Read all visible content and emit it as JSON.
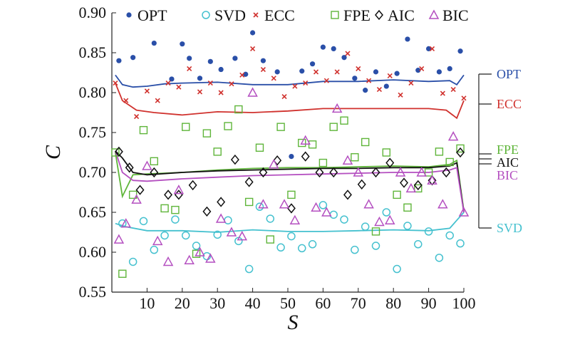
{
  "chart_data": {
    "type": "scatter",
    "title": "",
    "xlabel": "S",
    "ylabel": "C",
    "xlim": [
      0,
      100
    ],
    "ylim": [
      0.55,
      0.9
    ],
    "xticks": [
      10,
      20,
      30,
      40,
      50,
      60,
      70,
      80,
      90,
      100
    ],
    "yticks": [
      0.55,
      0.6,
      0.65,
      0.7,
      0.75,
      0.8,
      0.85,
      0.9
    ],
    "ytick_labels": [
      "0.55",
      "0.60",
      "0.65",
      "0.70",
      "0.75",
      "0.80",
      "0.85",
      "0.90"
    ],
    "grid": false,
    "legend": "top",
    "series": [
      {
        "name": "OPT",
        "marker": "dot",
        "color": "#2a4fa8",
        "x": [
          2,
          6,
          12,
          17,
          20,
          22,
          25,
          28,
          31,
          35,
          38,
          40,
          43,
          47,
          51,
          54,
          57,
          60,
          63,
          66,
          69,
          72,
          75,
          78,
          81,
          84,
          87,
          90,
          93,
          96,
          99
        ],
        "y": [
          0.84,
          0.844,
          0.862,
          0.817,
          0.861,
          0.843,
          0.818,
          0.839,
          0.829,
          0.843,
          0.823,
          0.875,
          0.84,
          0.826,
          0.72,
          0.827,
          0.836,
          0.857,
          0.855,
          0.844,
          0.818,
          0.803,
          0.826,
          0.808,
          0.824,
          0.867,
          0.828,
          0.855,
          0.826,
          0.83,
          0.852
        ],
        "trend": [
          [
            1,
            0.822
          ],
          [
            3,
            0.81
          ],
          [
            6,
            0.807
          ],
          [
            10,
            0.808
          ],
          [
            15,
            0.811
          ],
          [
            20,
            0.812
          ],
          [
            30,
            0.813
          ],
          [
            40,
            0.81
          ],
          [
            50,
            0.81
          ],
          [
            60,
            0.814
          ],
          [
            70,
            0.814
          ],
          [
            80,
            0.816
          ],
          [
            90,
            0.814
          ],
          [
            96,
            0.815
          ],
          [
            98,
            0.81
          ],
          [
            100,
            0.822
          ]
        ],
        "right_label": "OPT"
      },
      {
        "name": "SVD",
        "marker": "circle",
        "color": "#45c1cf",
        "x": [
          3,
          6,
          9,
          12,
          15,
          18,
          21,
          24,
          27,
          30,
          33,
          36,
          39,
          42,
          45,
          48,
          51,
          54,
          57,
          60,
          63,
          66,
          69,
          72,
          75,
          78,
          81,
          84,
          87,
          90,
          93,
          96,
          99
        ],
        "y": [
          0.636,
          0.588,
          0.639,
          0.603,
          0.621,
          0.641,
          0.621,
          0.608,
          0.595,
          0.622,
          0.64,
          0.614,
          0.579,
          0.657,
          0.642,
          0.606,
          0.62,
          0.605,
          0.61,
          0.659,
          0.647,
          0.641,
          0.603,
          0.632,
          0.608,
          0.65,
          0.579,
          0.633,
          0.61,
          0.626,
          0.593,
          0.621,
          0.611
        ],
        "trend": [
          [
            1,
            0.636
          ],
          [
            4,
            0.632
          ],
          [
            10,
            0.627
          ],
          [
            20,
            0.627
          ],
          [
            30,
            0.625
          ],
          [
            40,
            0.628
          ],
          [
            50,
            0.626
          ],
          [
            60,
            0.626
          ],
          [
            70,
            0.627
          ],
          [
            80,
            0.628
          ],
          [
            90,
            0.627
          ],
          [
            96,
            0.63
          ],
          [
            98,
            0.64
          ],
          [
            100,
            0.65
          ]
        ],
        "right_label": "SVD"
      },
      {
        "name": "ECC",
        "marker": "cross",
        "color": "#d0312d",
        "x": [
          1,
          4,
          7,
          10,
          13,
          16,
          19,
          22,
          25,
          28,
          31,
          34,
          37,
          40,
          43,
          46,
          49,
          52,
          55,
          58,
          61,
          64,
          67,
          70,
          73,
          76,
          79,
          82,
          85,
          88,
          91,
          94,
          97,
          100
        ],
        "y": [
          0.812,
          0.79,
          0.77,
          0.802,
          0.79,
          0.812,
          0.807,
          0.83,
          0.801,
          0.812,
          0.8,
          0.811,
          0.822,
          0.855,
          0.829,
          0.818,
          0.795,
          0.808,
          0.812,
          0.826,
          0.815,
          0.826,
          0.849,
          0.83,
          0.815,
          0.804,
          0.821,
          0.797,
          0.812,
          0.83,
          0.855,
          0.799,
          0.804,
          0.793
        ],
        "trend": [
          [
            1,
            0.812
          ],
          [
            3,
            0.79
          ],
          [
            7,
            0.778
          ],
          [
            12,
            0.775
          ],
          [
            20,
            0.772
          ],
          [
            30,
            0.776
          ],
          [
            40,
            0.775
          ],
          [
            50,
            0.777
          ],
          [
            60,
            0.78
          ],
          [
            70,
            0.78
          ],
          [
            80,
            0.78
          ],
          [
            90,
            0.78
          ],
          [
            95,
            0.778
          ],
          [
            98,
            0.768
          ],
          [
            100,
            0.79
          ]
        ],
        "right_label": "ECC"
      },
      {
        "name": "FPE",
        "marker": "square",
        "color": "#5fb53a",
        "x": [
          1,
          3,
          6,
          9,
          12,
          15,
          18,
          21,
          24,
          27,
          30,
          33,
          36,
          39,
          42,
          45,
          48,
          51,
          54,
          57,
          60,
          63,
          66,
          69,
          72,
          75,
          78,
          81,
          84,
          87,
          90,
          93,
          96,
          99
        ],
        "y": [
          0.725,
          0.573,
          0.672,
          0.753,
          0.714,
          0.655,
          0.653,
          0.757,
          0.598,
          0.749,
          0.726,
          0.758,
          0.779,
          0.663,
          0.731,
          0.616,
          0.757,
          0.672,
          0.737,
          0.735,
          0.712,
          0.757,
          0.765,
          0.719,
          0.738,
          0.626,
          0.725,
          0.672,
          0.656,
          0.68,
          0.7,
          0.726,
          0.713,
          0.73
        ],
        "trend": [
          [
            1,
            0.725
          ],
          [
            3,
            0.67
          ],
          [
            6,
            0.697
          ],
          [
            10,
            0.698
          ],
          [
            20,
            0.7
          ],
          [
            30,
            0.703
          ],
          [
            40,
            0.705
          ],
          [
            50,
            0.706
          ],
          [
            60,
            0.706
          ],
          [
            70,
            0.707
          ],
          [
            80,
            0.708
          ],
          [
            90,
            0.707
          ],
          [
            96,
            0.71
          ],
          [
            98,
            0.715
          ],
          [
            100,
            0.652
          ]
        ],
        "right_label": "FPE"
      },
      {
        "name": "AIC",
        "marker": "diamond",
        "color": "#111111",
        "x": [
          2,
          5,
          8,
          12,
          16,
          19,
          23,
          27,
          31,
          35,
          39,
          43,
          47,
          51,
          55,
          59,
          63,
          67,
          71,
          75,
          79,
          83,
          87,
          91,
          95,
          99
        ],
        "y": [
          0.726,
          0.706,
          0.678,
          0.7,
          0.672,
          0.672,
          0.684,
          0.651,
          0.663,
          0.716,
          0.688,
          0.7,
          0.715,
          0.655,
          0.72,
          0.7,
          0.7,
          0.672,
          0.685,
          0.7,
          0.712,
          0.687,
          0.684,
          0.69,
          0.7,
          0.725
        ],
        "trend": [
          [
            1,
            0.727
          ],
          [
            3,
            0.718
          ],
          [
            6,
            0.7
          ],
          [
            10,
            0.697
          ],
          [
            20,
            0.7
          ],
          [
            30,
            0.702
          ],
          [
            40,
            0.703
          ],
          [
            50,
            0.704
          ],
          [
            60,
            0.705
          ],
          [
            70,
            0.705
          ],
          [
            80,
            0.706
          ],
          [
            90,
            0.706
          ],
          [
            96,
            0.708
          ],
          [
            98,
            0.712
          ],
          [
            100,
            0.65
          ]
        ],
        "right_label": "AIC"
      },
      {
        "name": "BIC",
        "marker": "triangle",
        "color": "#b44fc0",
        "x": [
          2,
          4,
          7,
          10,
          13,
          16,
          19,
          22,
          25,
          28,
          31,
          34,
          37,
          40,
          43,
          46,
          49,
          52,
          55,
          58,
          61,
          64,
          67,
          70,
          73,
          76,
          79,
          82,
          85,
          88,
          91,
          94,
          97,
          100
        ],
        "y": [
          0.616,
          0.636,
          0.666,
          0.708,
          0.614,
          0.588,
          0.678,
          0.59,
          0.6,
          0.592,
          0.642,
          0.625,
          0.62,
          0.8,
          0.66,
          0.71,
          0.66,
          0.64,
          0.74,
          0.656,
          0.65,
          0.78,
          0.715,
          0.7,
          0.66,
          0.638,
          0.64,
          0.7,
          0.68,
          0.7,
          0.69,
          0.66,
          0.745,
          0.65
        ],
        "trend": [
          [
            1,
            0.727
          ],
          [
            3,
            0.7
          ],
          [
            6,
            0.69
          ],
          [
            10,
            0.689
          ],
          [
            20,
            0.692
          ],
          [
            30,
            0.694
          ],
          [
            40,
            0.696
          ],
          [
            50,
            0.697
          ],
          [
            60,
            0.698
          ],
          [
            70,
            0.699
          ],
          [
            80,
            0.7
          ],
          [
            90,
            0.7
          ],
          [
            96,
            0.703
          ],
          [
            98,
            0.706
          ],
          [
            100,
            0.65
          ]
        ],
        "right_label": "BIC"
      }
    ]
  }
}
